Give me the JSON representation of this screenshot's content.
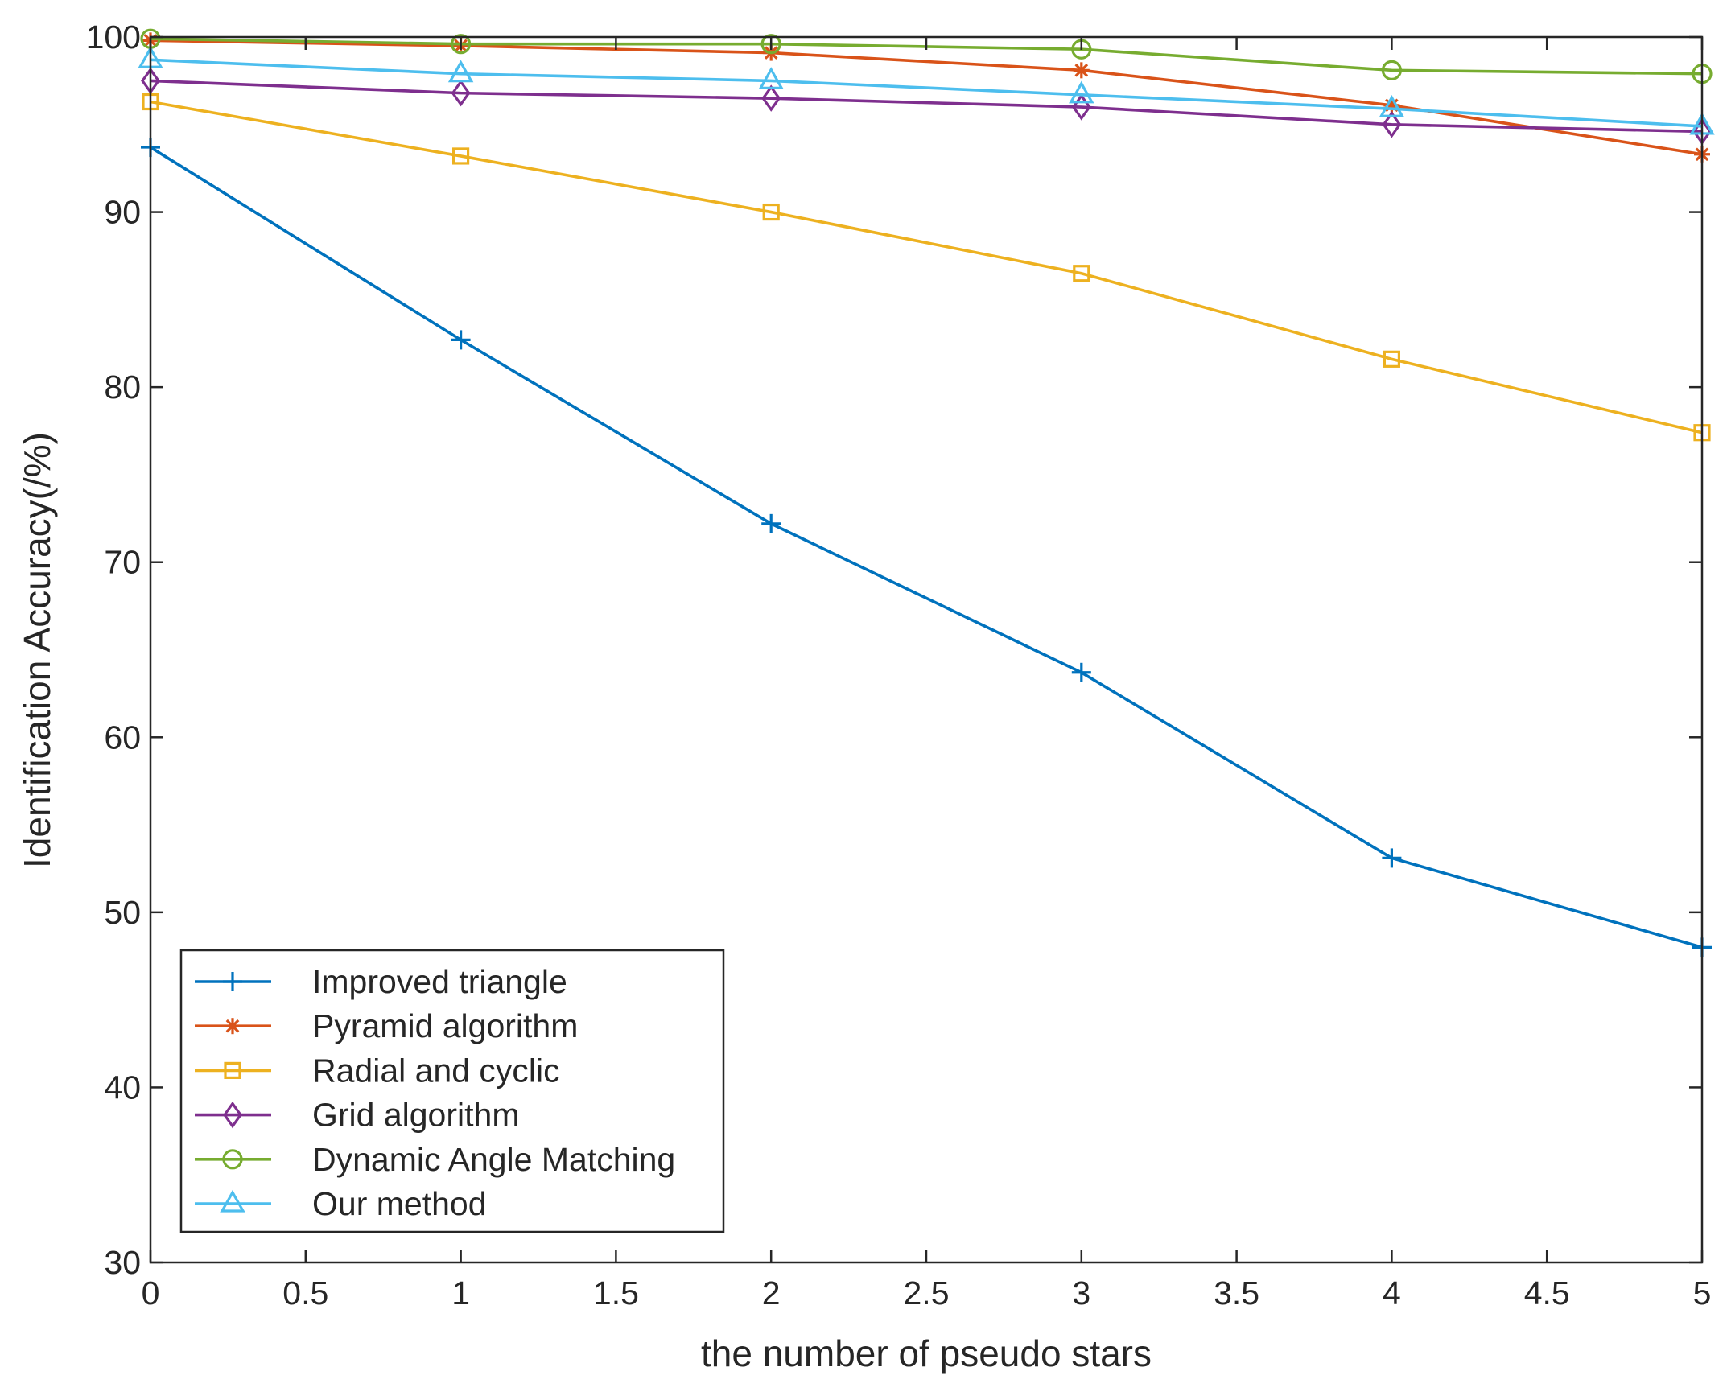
{
  "chart_data": {
    "type": "line",
    "title": "",
    "xlabel": "the number of pseudo stars",
    "ylabel": "Identification Accuracy(/%)",
    "x": [
      0,
      1,
      2,
      3,
      4,
      5
    ],
    "xlim": [
      0,
      5
    ],
    "ylim": [
      30,
      100
    ],
    "xticks": [
      0,
      0.5,
      1,
      1.5,
      2,
      2.5,
      3,
      3.5,
      4,
      4.5,
      5
    ],
    "xtick_labels": [
      "0",
      "0.5",
      "1",
      "1.5",
      "2",
      "2.5",
      "3",
      "3.5",
      "4",
      "4.5",
      "5"
    ],
    "yticks": [
      30,
      40,
      50,
      60,
      70,
      80,
      90,
      100
    ],
    "ytick_labels": [
      "30",
      "40",
      "50",
      "60",
      "70",
      "80",
      "90",
      "100"
    ],
    "grid": false,
    "legend_position": "bottom-left",
    "series": [
      {
        "name": "Improved triangle",
        "marker": "plus",
        "color": "#0072BD",
        "values": [
          93.7,
          82.7,
          72.2,
          63.7,
          53.1,
          48.0
        ]
      },
      {
        "name": "Pyramid algorithm",
        "marker": "asterisk",
        "color": "#D95319",
        "values": [
          99.8,
          99.5,
          99.1,
          98.1,
          96.1,
          93.3
        ]
      },
      {
        "name": "Radial and cyclic",
        "marker": "square",
        "color": "#EDB120",
        "values": [
          96.3,
          93.2,
          90.0,
          86.5,
          81.6,
          77.4
        ]
      },
      {
        "name": "Grid algorithm",
        "marker": "diamond",
        "color": "#7E2F8E",
        "values": [
          97.5,
          96.8,
          96.5,
          96.0,
          95.0,
          94.6
        ]
      },
      {
        "name": "Dynamic Angle Matching",
        "marker": "circle",
        "color": "#77AC30",
        "values": [
          99.9,
          99.6,
          99.6,
          99.3,
          98.1,
          97.9
        ]
      },
      {
        "name": "Our method",
        "marker": "triangle",
        "color": "#4DBEEE",
        "values": [
          98.7,
          97.9,
          97.5,
          96.7,
          95.9,
          94.9
        ]
      }
    ]
  }
}
